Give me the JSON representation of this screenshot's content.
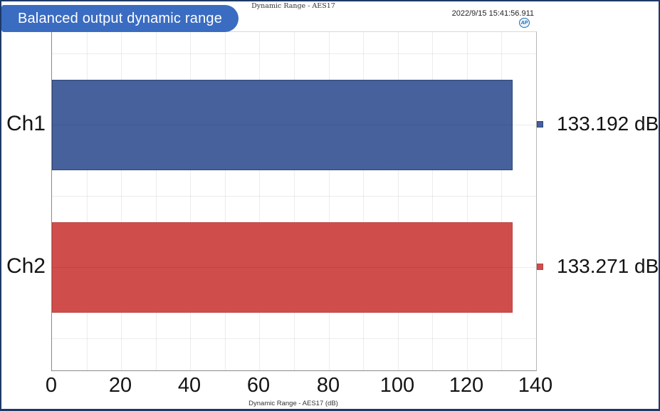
{
  "badge": {
    "label": "Balanced output dynamic range",
    "color": "#3a6cc1"
  },
  "header": {
    "title": "Dynamic Range - AES17",
    "timestamp": "2022/9/15 15:41:56.911",
    "logo_text": "AP"
  },
  "footer": {
    "axis_caption": "Dynamic Range - AES17 (dB)"
  },
  "chart_data": {
    "type": "bar",
    "orientation": "horizontal",
    "title": "Dynamic Range - AES17",
    "categories": [
      "Ch1",
      "Ch2"
    ],
    "values": [
      133.192,
      133.271
    ],
    "value_labels": [
      "133.192 dB",
      "133.271 dB"
    ],
    "series_colors": [
      {
        "fill": "#46619c",
        "border": "#2e4778"
      },
      {
        "fill": "#cf4e4c",
        "border": "#bc4240"
      }
    ],
    "xlabel": "Dynamic Range - AES17 (dB)",
    "ylabel": "",
    "xlim": [
      0,
      140
    ],
    "xtick_labels": [
      "0",
      "20",
      "40",
      "60",
      "80",
      "100",
      "120",
      "140"
    ],
    "xtick_values": [
      0,
      20,
      40,
      60,
      80,
      100,
      120,
      140
    ],
    "minor_grid_step": 10,
    "grid": true,
    "value_unit": "dB"
  }
}
